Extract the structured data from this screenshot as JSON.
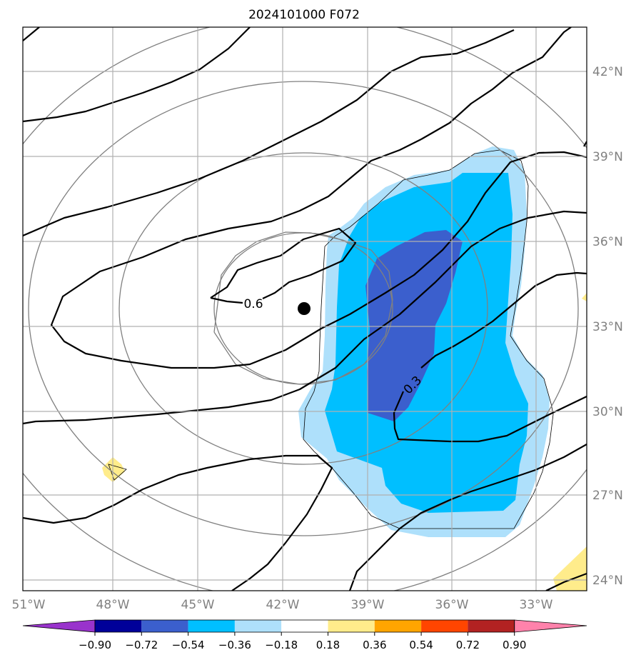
{
  "map": {
    "title": "2024101000 F072",
    "lon_labels": [
      "51°W",
      "48°W",
      "45°W",
      "42°W",
      "39°W",
      "36°W",
      "33°W"
    ],
    "lat_labels": [
      "42°N",
      "39°N",
      "36°N",
      "33°N",
      "30°N",
      "27°N",
      "24°N"
    ],
    "contour_labels": [
      "0.6",
      "0.3"
    ],
    "storm_center_marker": "filled black circle",
    "colorbar": {
      "ticks": [
        "−0.90",
        "−0.72",
        "−0.54",
        "−0.36",
        "−0.18",
        "0.18",
        "0.36",
        "0.54",
        "0.72",
        "0.90"
      ],
      "colors": [
        "#9933cc",
        "#000099",
        "#3b5fcd",
        "#00bfff",
        "#aee0fb",
        "#ffffff",
        "#ffec8b",
        "#ffa500",
        "#ff4500",
        "#b22222",
        "#ff82ab"
      ]
    },
    "fill_colors": {
      "light_blue": "#aee0fb",
      "deep_sky_blue": "#00bfff",
      "royal_blue": "#3b5fcd",
      "light_yellow": "#ffec8b"
    }
  }
}
